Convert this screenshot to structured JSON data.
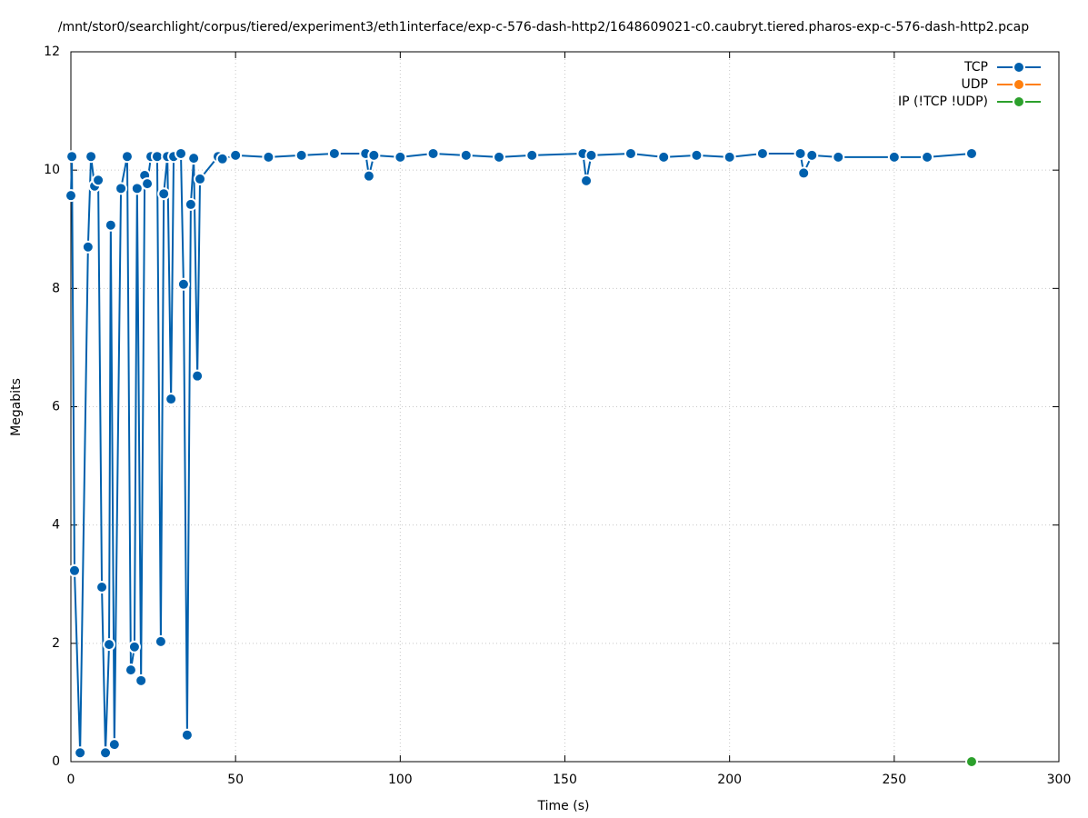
{
  "chart_data": {
    "type": "line",
    "title": "/mnt/stor0/searchlight/corpus/tiered/experiment3/eth1interface/exp-c-576-dash-http2/1648609021-c0.caubryt.tiered.pharos-exp-c-576-dash-http2.pcap",
    "x_label": "Time (s)",
    "y_label": "Megabits",
    "xlim": [
      0,
      300
    ],
    "xticks": [
      0,
      50,
      100,
      150,
      200,
      250,
      300
    ],
    "ylim": [
      0,
      12
    ],
    "yticks": [
      0,
      2,
      4,
      6,
      8,
      10,
      12
    ],
    "grid": true,
    "legend": "top-right",
    "series": [
      {
        "name": "TCP",
        "color": "#0060ad",
        "x": [
          0,
          0.3,
          1.1,
          2.8,
          5.2,
          6.1,
          7.2,
          8.3,
          9.4,
          10.5,
          11.6,
          12.1,
          13.2,
          15.2,
          17.1,
          18.2,
          19.3,
          20.1,
          21.3,
          22.4,
          23.2,
          24.3,
          26.2,
          27.3,
          28.2,
          29.3,
          30.4,
          31.2,
          33.4,
          34.2,
          35.3,
          36.4,
          37.3,
          38.4,
          39.2,
          44.7,
          46,
          50,
          60,
          70,
          80,
          89.5,
          90.5,
          92,
          100,
          110,
          120,
          130,
          140,
          155.5,
          156.5,
          158,
          170,
          180,
          190,
          200,
          210,
          221.5,
          222.5,
          225,
          233,
          250,
          260,
          273.5
        ],
        "values": [
          9.57,
          10.23,
          3.23,
          0.15,
          8.7,
          10.23,
          9.73,
          9.83,
          2.95,
          0.15,
          1.98,
          9.07,
          0.29,
          9.69,
          10.23,
          1.55,
          1.94,
          9.69,
          1.37,
          9.91,
          9.77,
          10.23,
          10.23,
          2.03,
          9.6,
          10.23,
          6.13,
          10.23,
          10.28,
          8.07,
          0.45,
          9.42,
          10.2,
          6.52,
          9.85,
          10.23,
          10.19,
          10.25,
          10.22,
          10.25,
          10.28,
          10.28,
          9.9,
          10.25,
          10.22,
          10.28,
          10.25,
          10.22,
          10.25,
          10.28,
          9.82,
          10.25,
          10.28,
          10.22,
          10.25,
          10.22,
          10.28,
          10.28,
          9.95,
          10.25,
          10.22,
          10.22,
          10.22,
          10.28
        ]
      },
      {
        "name": "UDP",
        "color": "#ff7f0e",
        "x": [],
        "values": []
      },
      {
        "name": "IP (!TCP  !UDP)",
        "color": "#2ca02c",
        "x": [
          273.5
        ],
        "values": [
          0
        ]
      }
    ]
  }
}
